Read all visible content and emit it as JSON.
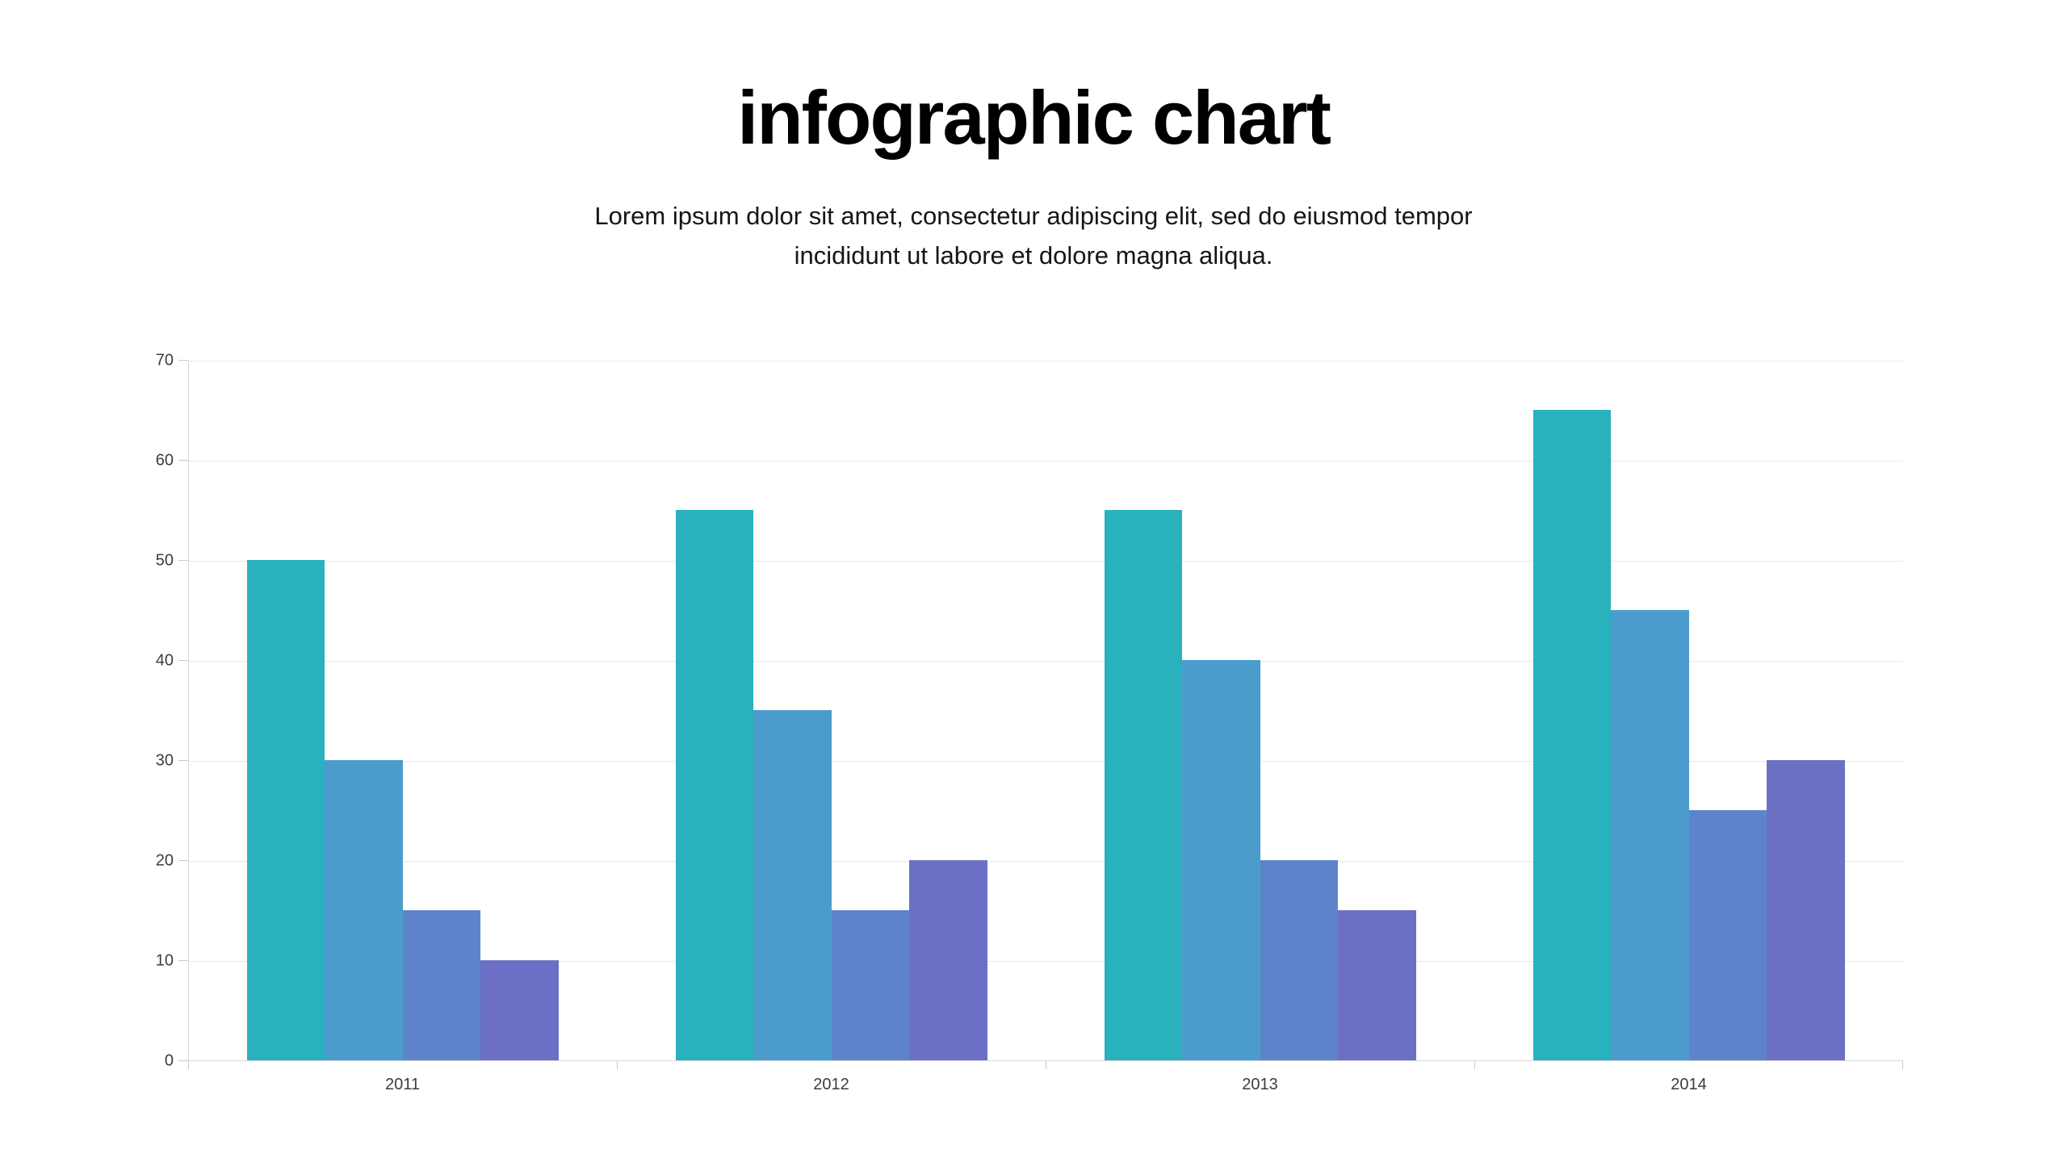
{
  "header": {
    "title": "infographic chart",
    "subtitle_line1": "Lorem ipsum dolor sit amet, consectetur adipiscing elit, sed do eiusmod tempor",
    "subtitle_line2": "incididunt ut labore et dolore magna aliqua."
  },
  "chart_data": {
    "type": "bar",
    "title": "infographic chart",
    "categories": [
      "2011",
      "2012",
      "2013",
      "2014"
    ],
    "series": [
      {
        "name": "series-teal",
        "color": "#29b1bd",
        "values": [
          50,
          55,
          55,
          65
        ]
      },
      {
        "name": "series-blue",
        "color": "#4b9ccd",
        "values": [
          30,
          35,
          40,
          45
        ]
      },
      {
        "name": "series-indigo",
        "color": "#5d84cb",
        "values": [
          15,
          15,
          20,
          25
        ]
      },
      {
        "name": "series-purple",
        "color": "#6b70c5",
        "values": [
          10,
          20,
          15,
          30
        ]
      }
    ],
    "xlabel": "",
    "ylabel": "",
    "ylim": [
      0,
      70
    ],
    "yticks": [
      0,
      10,
      20,
      30,
      40,
      50,
      60,
      70
    ],
    "grid": true,
    "legend": "none"
  },
  "colors": {
    "background": "#ffffff",
    "gridline": "#e9e9e9",
    "axis_line": "#d9d9d9",
    "tick_mark": "#c9c9c9",
    "tick_label": "#3c3c3c",
    "title": "#000000",
    "subtitle": "#161616"
  }
}
